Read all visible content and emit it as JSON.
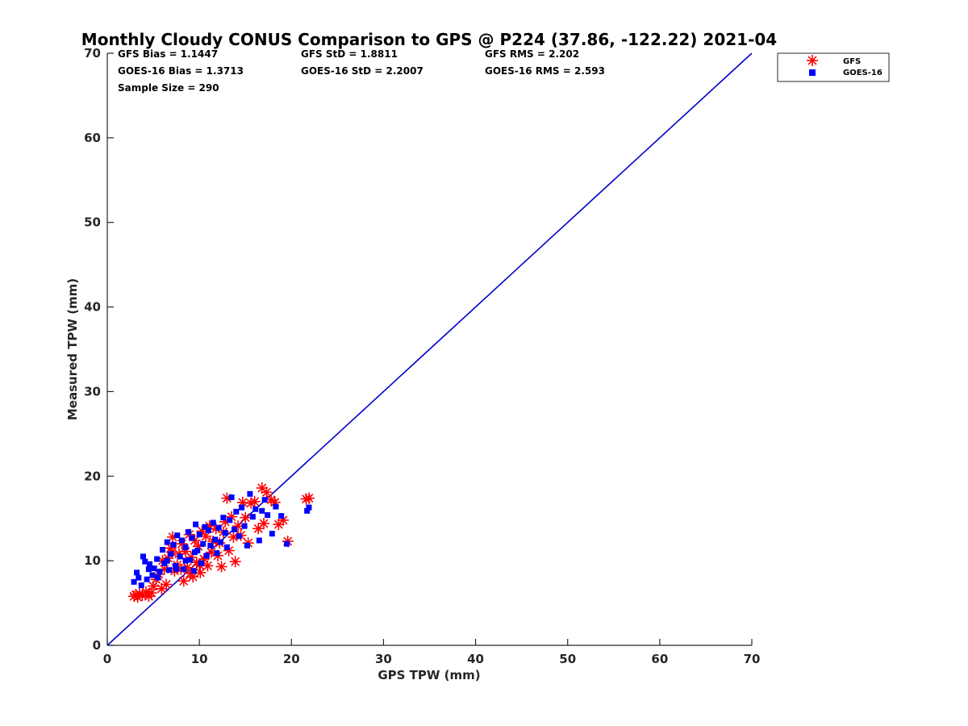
{
  "chart_data": {
    "type": "scatter",
    "title": "Monthly Cloudy CONUS Comparison to GPS @ P224 (37.86, -122.22) 2021-04",
    "xlabel": "GPS TPW (mm)",
    "ylabel": "Measured TPW (mm)",
    "xlim": [
      0,
      70
    ],
    "ylim": [
      0,
      70
    ],
    "xticks": [
      0,
      10,
      20,
      30,
      40,
      50,
      60,
      70
    ],
    "yticks": [
      0,
      10,
      20,
      30,
      40,
      50,
      60,
      70
    ],
    "grid": false,
    "legend_position": "top-right-outside",
    "stats": {
      "gfs_bias": "GFS Bias = 1.1447",
      "gfs_std": "GFS StD = 1.8811",
      "gfs_rms": "GFS RMS = 2.202",
      "goes_bias": "GOES-16 Bias = 1.3713",
      "goes_std": "GOES-16 StD = 2.2007",
      "goes_rms": "GOES-16 RMS = 2.593",
      "sample_size": "Sample Size = 290"
    },
    "reference_line": {
      "x": [
        0,
        70
      ],
      "y": [
        0,
        70
      ],
      "color": "#0000cc"
    },
    "series": [
      {
        "name": "GFS",
        "marker": "asterisk",
        "color": "#ff0000",
        "points": [
          [
            2.9,
            5.8
          ],
          [
            3.1,
            6.0
          ],
          [
            3.3,
            5.7
          ],
          [
            3.5,
            6.1
          ],
          [
            3.8,
            5.9
          ],
          [
            4.2,
            6.3
          ],
          [
            4.5,
            5.8
          ],
          [
            4.8,
            6.2
          ],
          [
            5.0,
            7.0
          ],
          [
            5.3,
            7.8
          ],
          [
            5.6,
            8.4
          ],
          [
            5.9,
            6.7
          ],
          [
            6.2,
            9.0
          ],
          [
            6.4,
            7.2
          ],
          [
            6.6,
            10.3
          ],
          [
            6.9,
            11.5
          ],
          [
            7.1,
            12.8
          ],
          [
            7.3,
            8.8
          ],
          [
            7.6,
            9.5
          ],
          [
            7.8,
            10.8
          ],
          [
            8.1,
            12.0
          ],
          [
            8.3,
            7.6
          ],
          [
            8.5,
            11.1
          ],
          [
            8.7,
            9.2
          ],
          [
            8.9,
            13.1
          ],
          [
            9.1,
            10.4
          ],
          [
            9.3,
            8.1
          ],
          [
            9.5,
            12.4
          ],
          [
            9.7,
            9.8
          ],
          [
            9.9,
            11.7
          ],
          [
            10.1,
            8.6
          ],
          [
            10.3,
            13.5
          ],
          [
            10.5,
            10.2
          ],
          [
            10.7,
            12.9
          ],
          [
            10.9,
            9.4
          ],
          [
            11.1,
            14.1
          ],
          [
            11.3,
            11.0
          ],
          [
            11.5,
            12.3
          ],
          [
            11.8,
            13.8
          ],
          [
            12.0,
            10.6
          ],
          [
            12.2,
            12.1
          ],
          [
            12.4,
            9.3
          ],
          [
            12.6,
            13.4
          ],
          [
            12.8,
            14.6
          ],
          [
            13.0,
            17.4
          ],
          [
            13.2,
            11.2
          ],
          [
            13.5,
            15.2
          ],
          [
            13.7,
            12.8
          ],
          [
            13.9,
            9.9
          ],
          [
            14.2,
            14.1
          ],
          [
            14.5,
            13.0
          ],
          [
            14.7,
            16.9
          ],
          [
            15.0,
            15.1
          ],
          [
            15.3,
            12.1
          ],
          [
            15.6,
            16.8
          ],
          [
            16.0,
            17.0
          ],
          [
            16.4,
            13.8
          ],
          [
            16.8,
            18.6
          ],
          [
            17.0,
            14.4
          ],
          [
            17.3,
            18.1
          ],
          [
            17.8,
            17.2
          ],
          [
            18.2,
            16.9
          ],
          [
            18.6,
            14.3
          ],
          [
            19.1,
            14.8
          ],
          [
            19.6,
            12.3
          ],
          [
            21.6,
            17.3
          ],
          [
            21.9,
            17.4
          ],
          [
            6.0,
            10.0
          ],
          [
            7.0,
            11.0
          ],
          [
            8.0,
            9.0
          ],
          [
            9.0,
            8.5
          ],
          [
            10.0,
            9.5
          ]
        ]
      },
      {
        "name": "GOES-16",
        "marker": "square",
        "color": "#0000ff",
        "points": [
          [
            2.9,
            7.5
          ],
          [
            3.2,
            8.6
          ],
          [
            3.4,
            8.0
          ],
          [
            3.7,
            7.1
          ],
          [
            3.9,
            10.5
          ],
          [
            4.1,
            9.9
          ],
          [
            4.3,
            7.8
          ],
          [
            4.6,
            9.6
          ],
          [
            4.9,
            8.3
          ],
          [
            5.1,
            9.1
          ],
          [
            5.4,
            10.2
          ],
          [
            5.7,
            8.7
          ],
          [
            6.0,
            11.3
          ],
          [
            6.2,
            9.7
          ],
          [
            6.5,
            12.2
          ],
          [
            6.7,
            8.9
          ],
          [
            6.9,
            10.8
          ],
          [
            7.2,
            11.9
          ],
          [
            7.4,
            9.4
          ],
          [
            7.6,
            13.0
          ],
          [
            7.9,
            10.5
          ],
          [
            8.1,
            12.4
          ],
          [
            8.3,
            9.0
          ],
          [
            8.5,
            11.6
          ],
          [
            8.8,
            13.4
          ],
          [
            9.0,
            10.1
          ],
          [
            9.2,
            12.7
          ],
          [
            9.4,
            8.8
          ],
          [
            9.6,
            14.3
          ],
          [
            9.8,
            11.2
          ],
          [
            10.0,
            13.1
          ],
          [
            10.2,
            9.7
          ],
          [
            10.4,
            12.0
          ],
          [
            10.6,
            14.0
          ],
          [
            10.8,
            10.6
          ],
          [
            11.0,
            13.6
          ],
          [
            11.2,
            11.8
          ],
          [
            11.5,
            14.5
          ],
          [
            11.7,
            12.5
          ],
          [
            11.9,
            10.9
          ],
          [
            12.1,
            13.9
          ],
          [
            12.3,
            12.2
          ],
          [
            12.6,
            15.1
          ],
          [
            12.8,
            13.3
          ],
          [
            13.0,
            11.6
          ],
          [
            13.3,
            14.8
          ],
          [
            13.5,
            17.5
          ],
          [
            13.8,
            13.7
          ],
          [
            14.0,
            15.8
          ],
          [
            14.3,
            12.9
          ],
          [
            14.6,
            16.3
          ],
          [
            14.9,
            14.1
          ],
          [
            15.2,
            11.8
          ],
          [
            15.5,
            17.9
          ],
          [
            15.8,
            15.2
          ],
          [
            16.1,
            16.1
          ],
          [
            16.5,
            12.4
          ],
          [
            16.8,
            15.9
          ],
          [
            17.1,
            17.2
          ],
          [
            17.4,
            15.4
          ],
          [
            17.9,
            13.2
          ],
          [
            18.3,
            16.4
          ],
          [
            18.9,
            15.3
          ],
          [
            19.5,
            12.0
          ],
          [
            21.7,
            15.9
          ],
          [
            21.9,
            16.3
          ],
          [
            4.5,
            9.0
          ],
          [
            5.5,
            8.0
          ],
          [
            6.5,
            10.0
          ],
          [
            7.5,
            9.0
          ],
          [
            8.5,
            10.0
          ],
          [
            9.5,
            11.0
          ]
        ]
      }
    ]
  }
}
